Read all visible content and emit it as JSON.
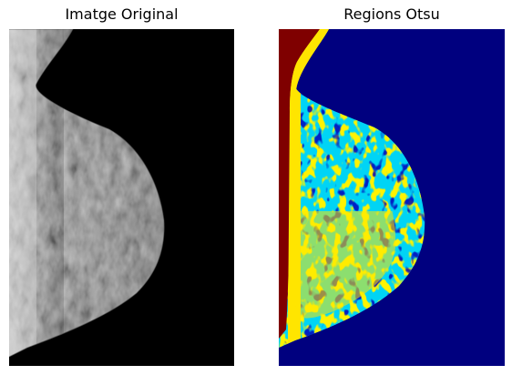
{
  "figure": {
    "left_title": "Imatge Original",
    "right_title": "Regions Otsu"
  },
  "colors": {
    "background": "#000000",
    "region_0": "#00007f",
    "region_1": "#00d4f5",
    "region_2": "#ffe500",
    "region_3": "#7f0000"
  },
  "images": [
    {
      "name": "original-mammogram",
      "kind": "grayscale"
    },
    {
      "name": "otsu-regions-map",
      "kind": "segmentation",
      "regions": 4
    }
  ]
}
